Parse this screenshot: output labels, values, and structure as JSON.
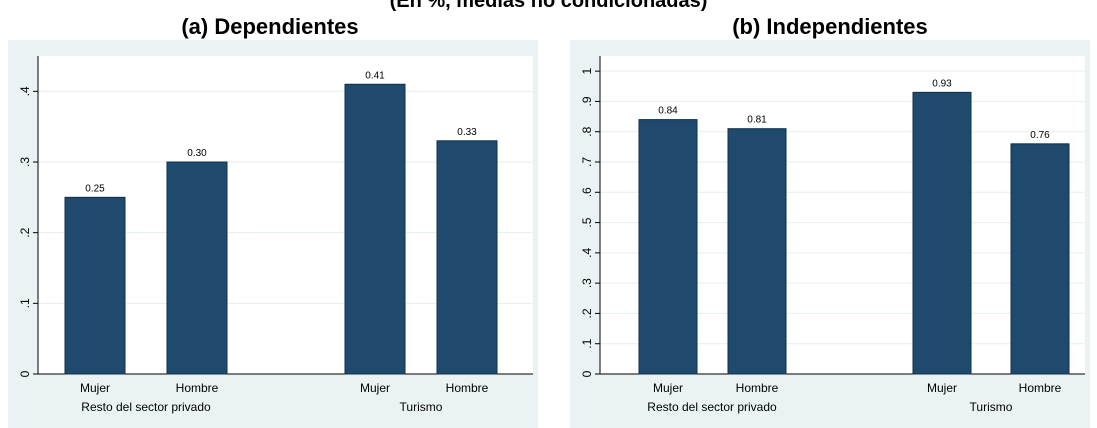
{
  "page": {
    "title": "(En %, medias no condicionadas)"
  },
  "chart_data": [
    {
      "type": "bar",
      "title": "(a) Dependientes",
      "groups": [
        "Resto del sector privado",
        "Turismo"
      ],
      "categories": [
        "Mujer",
        "Hombre",
        "Mujer",
        "Hombre"
      ],
      "values": [
        0.25,
        0.3,
        0.41,
        0.33
      ],
      "data_labels": [
        "0.25",
        "0.30",
        "0.41",
        "0.33"
      ],
      "ylim": [
        0,
        0.45
      ],
      "yticks": [
        0,
        0.1,
        0.2,
        0.3,
        0.4
      ],
      "ytick_labels": [
        "0",
        ".1",
        ".2",
        ".3",
        ".4"
      ],
      "bar_color": "#1f4a6e",
      "grid": true
    },
    {
      "type": "bar",
      "title": "(b) Independientes",
      "groups": [
        "Resto del sector privado",
        "Turismo"
      ],
      "categories": [
        "Mujer",
        "Hombre",
        "Mujer",
        "Hombre"
      ],
      "values": [
        0.84,
        0.81,
        0.93,
        0.76
      ],
      "data_labels": [
        "0.84",
        "0.81",
        "0.93",
        "0.76"
      ],
      "ylim": [
        0,
        1.05
      ],
      "yticks": [
        0,
        0.1,
        0.2,
        0.3,
        0.4,
        0.5,
        0.6,
        0.7,
        0.8,
        0.9,
        1
      ],
      "ytick_labels": [
        "0",
        ".1",
        ".2",
        ".3",
        ".4",
        ".5",
        ".6",
        ".7",
        ".8",
        ".9",
        "1"
      ],
      "bar_color": "#1f4a6e",
      "grid": true
    }
  ]
}
